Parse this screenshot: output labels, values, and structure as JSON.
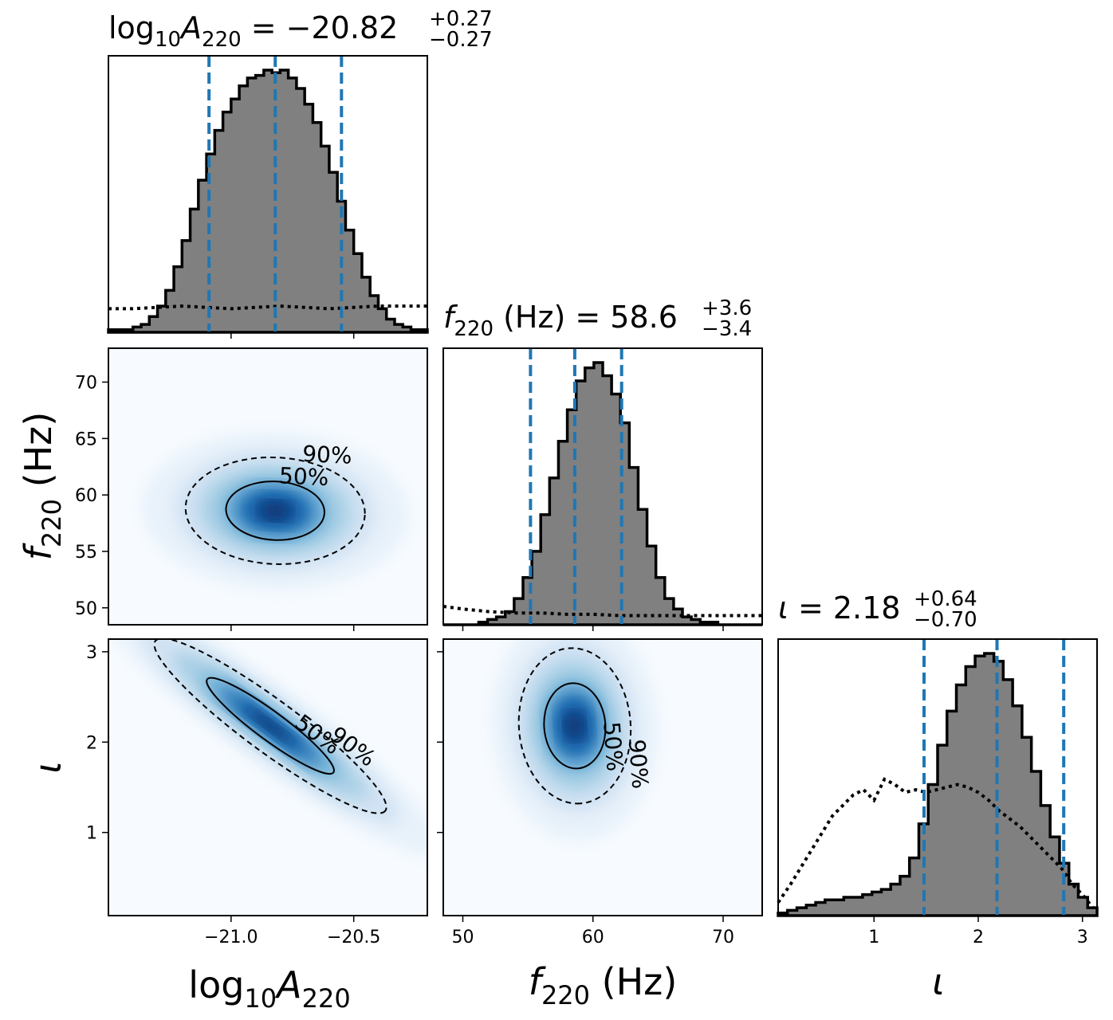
{
  "colors": {
    "histogram_fill": "#808080",
    "histogram_edge": "#000000",
    "quantile_line": "#1f77b4",
    "density_cmap": "Blues",
    "contour": "#000000"
  },
  "chart_data": {
    "type": "corner",
    "parameters": [
      {
        "key": "logA",
        "label": "log10 A220",
        "range": [
          -21.5,
          -20.2
        ],
        "ticks": [
          -21.0,
          -20.5
        ],
        "tick_labels": [
          "−21.0",
          "−20.5"
        ]
      },
      {
        "key": "f",
        "label": "f220 (Hz)",
        "range": [
          48.5,
          73.0
        ],
        "ticks": [
          50,
          55,
          60,
          65,
          70
        ],
        "tick_labels": [
          "50",
          "55",
          "60",
          "65",
          "70"
        ],
        "bottom_ticks": [
          50,
          60,
          70
        ],
        "bottom_tick_labels": [
          "50",
          "60",
          "70"
        ]
      },
      {
        "key": "iota",
        "label": "ι",
        "range": [
          0.08,
          3.14
        ],
        "ticks": [
          1,
          2,
          3
        ],
        "tick_labels": [
          "1",
          "2",
          "3"
        ]
      }
    ],
    "marginals": [
      {
        "param": "logA",
        "title": {
          "base": "log",
          "sub1": "10",
          "var": "A",
          "sub2": "220",
          "value": " = −20.82",
          "plus": "+0.27",
          "minus": "−0.27"
        },
        "median": -20.82,
        "lower": -21.09,
        "upper": -20.55,
        "posterior_hist": [
          0.01,
          0.01,
          0.01,
          0.02,
          0.03,
          0.06,
          0.1,
          0.16,
          0.25,
          0.35,
          0.47,
          0.58,
          0.68,
          0.77,
          0.84,
          0.89,
          0.94,
          0.97,
          0.98,
          1.0,
          0.99,
          1.0,
          0.97,
          0.93,
          0.87,
          0.8,
          0.71,
          0.61,
          0.5,
          0.39,
          0.3,
          0.21,
          0.14,
          0.09,
          0.05,
          0.03,
          0.02,
          0.01,
          0.01
        ],
        "prior_curve": [
          [
            -21.5,
            0.09
          ],
          [
            -21.4,
            0.09
          ],
          [
            -21.2,
            0.1
          ],
          [
            -21.0,
            0.09
          ],
          [
            -20.8,
            0.1
          ],
          [
            -20.6,
            0.09
          ],
          [
            -20.4,
            0.1
          ],
          [
            -20.2,
            0.1
          ]
        ]
      },
      {
        "param": "f",
        "title": {
          "var": "f",
          "sub2": "220",
          "value": " (Hz) = 58.6",
          "plus": "+3.6",
          "minus": "−3.4"
        },
        "median": 58.6,
        "lower": 55.2,
        "upper": 62.2,
        "posterior_hist": [
          0,
          0,
          0,
          0,
          0.01,
          0.02,
          0.03,
          0.05,
          0.1,
          0.18,
          0.28,
          0.42,
          0.56,
          0.7,
          0.82,
          0.93,
          0.98,
          1.0,
          0.95,
          0.88,
          0.77,
          0.6,
          0.44,
          0.3,
          0.18,
          0.1,
          0.06,
          0.03,
          0.02,
          0.01,
          0.01,
          0,
          0,
          0,
          0,
          0
        ],
        "prior_curve": [
          [
            48.5,
            0.07
          ],
          [
            50,
            0.06
          ],
          [
            52,
            0.05
          ],
          [
            54,
            0.045
          ],
          [
            56,
            0.045
          ],
          [
            58,
            0.04
          ],
          [
            60,
            0.04
          ],
          [
            62,
            0.035
          ],
          [
            64,
            0.035
          ],
          [
            66,
            0.035
          ],
          [
            68,
            0.035
          ],
          [
            70,
            0.035
          ],
          [
            73,
            0.035
          ]
        ]
      },
      {
        "param": "iota",
        "title": {
          "var": "ι",
          "value": " = 2.18",
          "plus": "+0.64",
          "minus": "−0.70"
        },
        "median": 2.18,
        "lower": 1.48,
        "upper": 2.82,
        "posterior_hist": [
          0.01,
          0.02,
          0.03,
          0.04,
          0.05,
          0.06,
          0.06,
          0.07,
          0.07,
          0.08,
          0.09,
          0.1,
          0.12,
          0.15,
          0.22,
          0.35,
          0.5,
          0.65,
          0.78,
          0.88,
          0.95,
          0.99,
          1.0,
          0.97,
          0.9,
          0.8,
          0.68,
          0.55,
          0.42,
          0.3,
          0.2,
          0.12,
          0.07,
          0.03
        ],
        "prior_curve": [
          [
            0.08,
            0.05
          ],
          [
            0.2,
            0.12
          ],
          [
            0.4,
            0.25
          ],
          [
            0.6,
            0.38
          ],
          [
            0.8,
            0.46
          ],
          [
            0.9,
            0.48
          ],
          [
            1.0,
            0.44
          ],
          [
            1.1,
            0.52
          ],
          [
            1.2,
            0.5
          ],
          [
            1.3,
            0.47
          ],
          [
            1.4,
            0.48
          ],
          [
            1.5,
            0.47
          ],
          [
            1.6,
            0.48
          ],
          [
            1.7,
            0.49
          ],
          [
            1.8,
            0.5
          ],
          [
            1.9,
            0.49
          ],
          [
            2.0,
            0.47
          ],
          [
            2.1,
            0.44
          ],
          [
            2.2,
            0.4
          ],
          [
            2.3,
            0.37
          ],
          [
            2.4,
            0.34
          ],
          [
            2.5,
            0.3
          ],
          [
            2.6,
            0.26
          ],
          [
            2.7,
            0.22
          ],
          [
            2.8,
            0.18
          ],
          [
            2.9,
            0.12
          ],
          [
            3.0,
            0.08
          ],
          [
            3.1,
            0.03
          ]
        ]
      }
    ],
    "joint": [
      {
        "x": "logA",
        "y": "f",
        "mean": [
          -20.82,
          58.6
        ],
        "sd": [
          0.17,
          2.2
        ],
        "rho": -0.05,
        "contours": [
          {
            "label": "50%",
            "style": "solid"
          },
          {
            "label": "90%",
            "style": "dashed"
          }
        ]
      },
      {
        "x": "logA",
        "y": "iota",
        "mean": [
          -20.84,
          2.18
        ],
        "sd": [
          0.22,
          0.45
        ],
        "rho": -0.93,
        "contours": [
          {
            "label": "50%",
            "style": "solid"
          },
          {
            "label": "90%",
            "style": "dashed"
          }
        ]
      },
      {
        "x": "f",
        "y": "iota",
        "mean": [
          58.6,
          2.18
        ],
        "sd": [
          2.0,
          0.4
        ],
        "rho": -0.05,
        "contours": [
          {
            "label": "50%",
            "style": "solid"
          },
          {
            "label": "90%",
            "style": "dashed"
          }
        ]
      }
    ],
    "axis_labels": {
      "logA": {
        "base": "log",
        "sub1": "10",
        "var": "A",
        "sub2": "220"
      },
      "f": {
        "var": "f",
        "sub2": "220",
        "unit": " (Hz)"
      },
      "iota": {
        "var": "ι"
      }
    }
  }
}
